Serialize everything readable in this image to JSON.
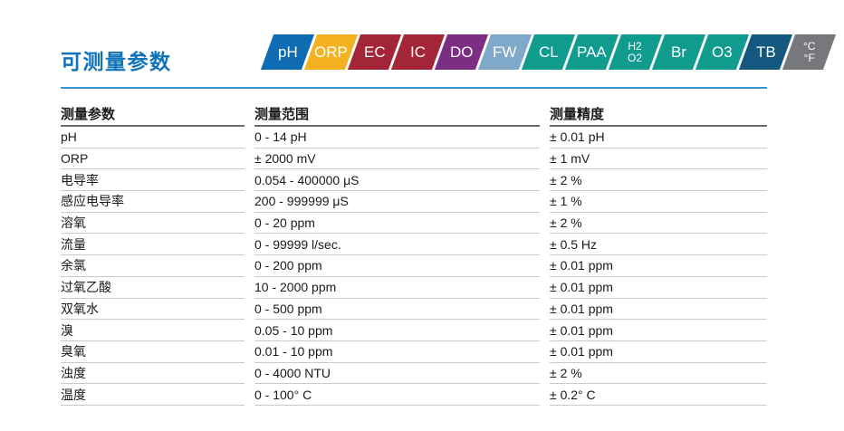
{
  "page": {
    "title": "可测量参数",
    "title_color": "#1173BA",
    "rule_color": "#2E96D2"
  },
  "badges": [
    {
      "name": "ph",
      "label": "pH",
      "color": "#0F6BB2"
    },
    {
      "name": "orp",
      "label": "ORP",
      "color": "#F4B223"
    },
    {
      "name": "ec",
      "label": "EC",
      "color": "#A32638"
    },
    {
      "name": "ic",
      "label": "IC",
      "color": "#A32638"
    },
    {
      "name": "do",
      "label": "DO",
      "color": "#7C2E82"
    },
    {
      "name": "fw",
      "label": "FW",
      "color": "#7FA8C9"
    },
    {
      "name": "cl",
      "label": "CL",
      "color": "#0F9B8E"
    },
    {
      "name": "paa",
      "label": "PAA",
      "color": "#0F9B8E"
    },
    {
      "name": "h2o2",
      "lines": [
        "H2",
        "O2"
      ],
      "color": "#0F9B8E"
    },
    {
      "name": "br",
      "label": "Br",
      "color": "#0F9B8E"
    },
    {
      "name": "o3",
      "label": "O3",
      "color": "#0F9B8E"
    },
    {
      "name": "tb",
      "label": "TB",
      "color": "#15587F"
    },
    {
      "name": "temp-cf",
      "lines": [
        "°C",
        "°F"
      ],
      "color": "#77787B"
    }
  ],
  "table": {
    "headers": [
      "测量参数",
      "测量范围",
      "测量精度"
    ],
    "rows": [
      [
        "pH",
        "0 - 14 pH",
        "± 0.01 pH"
      ],
      [
        "ORP",
        "± 2000 mV",
        "± 1 mV"
      ],
      [
        "电导率",
        "0.054 - 400000 μS",
        "± 2 %"
      ],
      [
        "感应电导率",
        "200 - 999999 μS",
        "± 1 %"
      ],
      [
        "溶氧",
        "0 - 20 ppm",
        "± 2 %"
      ],
      [
        "流量",
        "0 - 99999 l/sec.",
        "± 0.5 Hz"
      ],
      [
        "余氯",
        "0 - 200 ppm",
        "± 0.01 ppm"
      ],
      [
        "过氧乙酸",
        "10 - 2000 ppm",
        "± 0.01 ppm"
      ],
      [
        "双氧水",
        "0 - 500 ppm",
        "± 0.01 ppm"
      ],
      [
        "溴",
        "0.05 - 10 ppm",
        "± 0.01 ppm"
      ],
      [
        "臭氧",
        "0.01 - 10 ppm",
        "± 0.01 ppm"
      ],
      [
        "浊度",
        "0 - 4000 NTU",
        "± 2 %"
      ],
      [
        "温度",
        "0 - 100° C",
        "± 0.2° C"
      ]
    ]
  }
}
